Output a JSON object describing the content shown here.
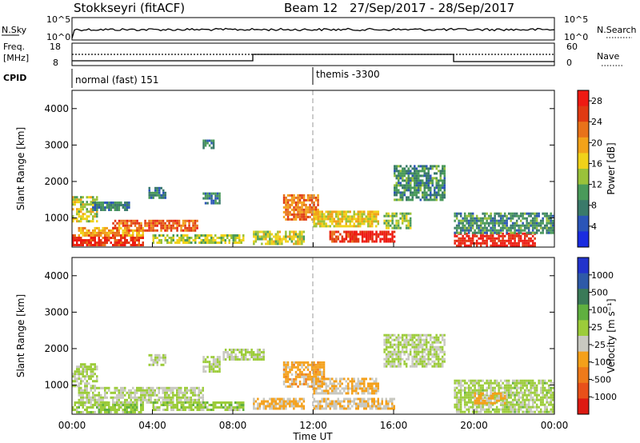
{
  "header": {
    "station": "Stokkseyri (fitACF)",
    "beam": "Beam 12",
    "date_range": "27/Sep/2017 - 28/Sep/2017"
  },
  "noise_panel": {
    "left_label": "N.Sky",
    "right_label": "N.Search",
    "left_ticks": [
      "10^5",
      "10^0"
    ],
    "right_ticks": [
      "10^5",
      "10^0"
    ]
  },
  "freq_panel": {
    "left_label_1": "Freq.",
    "left_label_2": "[MHz]",
    "right_label": "Nave",
    "left_ticks": [
      "18",
      "8"
    ],
    "right_ticks": [
      "60",
      "0"
    ]
  },
  "cpid_panel": {
    "label": "CPID",
    "mode_1": "normal (fast) 151",
    "mode_2": "themis -3300"
  },
  "colors": {
    "power": [
      "#1a2ce0",
      "#2b55b8",
      "#3a7a6a",
      "#4a9a5a",
      "#9ac23a",
      "#f0d21a",
      "#f2a21a",
      "#e8721a",
      "#e03a12",
      "#ee1a12"
    ],
    "velocity": [
      "#2233cc",
      "#2e5aa8",
      "#3a7a58",
      "#60b040",
      "#9ccc3a",
      "#c8c8c0",
      "#f4a01a",
      "#ee7a1a",
      "#e8501a",
      "#dd1a12"
    ]
  },
  "chart_data": [
    {
      "type": "heatmap",
      "parameter": "power",
      "ylabel": "Slant Range [km]",
      "ylim": [
        200,
        4500
      ],
      "yticks": [
        "1000",
        "2000",
        "3000",
        "4000"
      ],
      "xticks": [
        "00:00",
        "04:00",
        "08:00",
        "12:00",
        "16:00",
        "20:00",
        "00:00"
      ],
      "colorbar_label": "Power [dB]",
      "colorbar_ticks": [
        "4",
        "8",
        "12",
        "16",
        "20",
        "24",
        "28"
      ],
      "clim": [
        0,
        30
      ],
      "regions": [
        {
          "t0": 0.0,
          "t1": 3.5,
          "r0": 250,
          "r1": 550,
          "value": 27
        },
        {
          "t0": 0.3,
          "t1": 3.5,
          "r0": 550,
          "r1": 750,
          "value": 19
        },
        {
          "t0": 2.0,
          "t1": 6.2,
          "r0": 650,
          "r1": 950,
          "value": 24
        },
        {
          "t0": 0.0,
          "t1": 1.2,
          "r0": 900,
          "r1": 1600,
          "value": 15
        },
        {
          "t0": 1.0,
          "t1": 2.8,
          "r0": 1250,
          "r1": 1450,
          "value": 8
        },
        {
          "t0": 4.0,
          "t1": 8.5,
          "r0": 350,
          "r1": 550,
          "value": 14
        },
        {
          "t0": 3.8,
          "t1": 4.6,
          "r0": 1550,
          "r1": 1850,
          "value": 7
        },
        {
          "t0": 6.5,
          "t1": 7.3,
          "r0": 1400,
          "r1": 1700,
          "value": 8
        },
        {
          "t0": 9.0,
          "t1": 11.5,
          "r0": 300,
          "r1": 650,
          "value": 15
        },
        {
          "t0": 10.5,
          "t1": 12.2,
          "r0": 950,
          "r1": 1650,
          "value": 22
        },
        {
          "t0": 12.0,
          "t1": 15.2,
          "r0": 800,
          "r1": 1200,
          "value": 17
        },
        {
          "t0": 12.8,
          "t1": 14.2,
          "r0": 350,
          "r1": 650,
          "value": 27
        },
        {
          "t0": 14.0,
          "t1": 16.0,
          "r0": 350,
          "r1": 650,
          "value": 29
        },
        {
          "t0": 16.0,
          "t1": 18.5,
          "r0": 1500,
          "r1": 2450,
          "value": 9
        },
        {
          "t0": 15.5,
          "t1": 16.8,
          "r0": 700,
          "r1": 1150,
          "value": 13
        },
        {
          "t0": 19.0,
          "t1": 23.0,
          "r0": 250,
          "r1": 600,
          "value": 28
        },
        {
          "t0": 19.0,
          "t1": 24.0,
          "r0": 600,
          "r1": 1150,
          "value": 9
        },
        {
          "t0": 6.5,
          "t1": 7.0,
          "r0": 2900,
          "r1": 3150,
          "value": 8
        }
      ]
    },
    {
      "type": "heatmap",
      "parameter": "velocity",
      "ylabel": "Slant Range [km]",
      "ylim": [
        200,
        4500
      ],
      "yticks": [
        "1000",
        "2000",
        "3000",
        "4000"
      ],
      "xticks": [
        "00:00",
        "04:00",
        "08:00",
        "12:00",
        "16:00",
        "20:00",
        "00:00"
      ],
      "xlabel": "Time UT",
      "colorbar_label": "Velocity [m s⁻¹]",
      "colorbar_ticks": [
        "1000",
        "500",
        "100",
        "25",
        "-25",
        "-100",
        "-500",
        "-1000"
      ],
      "clim": [
        -1200,
        1200
      ],
      "regions": [
        {
          "t0": 0.0,
          "t1": 3.5,
          "r0": 250,
          "r1": 550,
          "value": 150
        },
        {
          "t0": 0.3,
          "t1": 6.5,
          "r0": 550,
          "r1": 950,
          "value": 0
        },
        {
          "t0": 0.0,
          "t1": 1.2,
          "r0": 950,
          "r1": 1600,
          "value": 60
        },
        {
          "t0": 4.0,
          "t1": 8.5,
          "r0": 300,
          "r1": 550,
          "value": 120
        },
        {
          "t0": 3.8,
          "t1": 4.6,
          "r0": 1550,
          "r1": 1850,
          "value": 0
        },
        {
          "t0": 6.5,
          "t1": 7.3,
          "r0": 1400,
          "r1": 1800,
          "value": 0
        },
        {
          "t0": 7.5,
          "t1": 9.5,
          "r0": 1700,
          "r1": 2000,
          "value": 0
        },
        {
          "t0": 9.0,
          "t1": 11.5,
          "r0": 350,
          "r1": 650,
          "value": -300
        },
        {
          "t0": 10.5,
          "t1": 12.5,
          "r0": 950,
          "r1": 1650,
          "value": -350
        },
        {
          "t0": 12.0,
          "t1": 15.2,
          "r0": 800,
          "r1": 1200,
          "value": -250
        },
        {
          "t0": 12.0,
          "t1": 16.0,
          "r0": 350,
          "r1": 650,
          "value": -200
        },
        {
          "t0": 15.5,
          "t1": 18.5,
          "r0": 1500,
          "r1": 2400,
          "value": 0
        },
        {
          "t0": 19.0,
          "t1": 24.0,
          "r0": 250,
          "r1": 1150,
          "value": 80
        },
        {
          "t0": 20.0,
          "t1": 21.5,
          "r0": 500,
          "r1": 800,
          "value": -300
        }
      ]
    }
  ]
}
